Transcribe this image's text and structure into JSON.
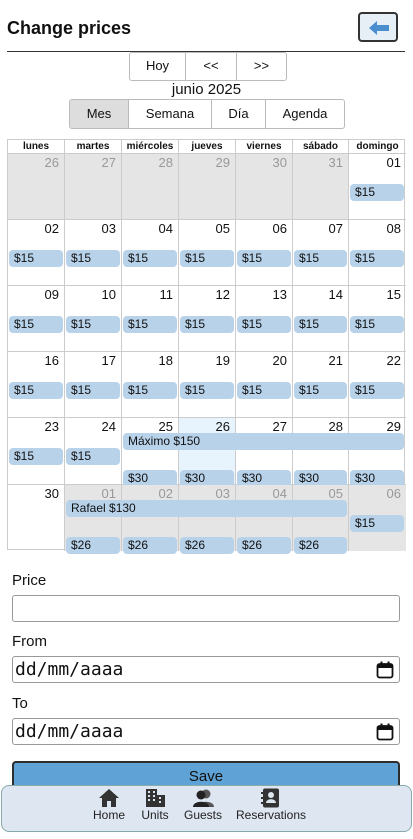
{
  "header": {
    "title": "Change prices"
  },
  "nav": {
    "today": "Hoy",
    "prev": "<<",
    "next": ">>"
  },
  "month_label": "junio 2025",
  "views": [
    "Mes",
    "Semana",
    "Día",
    "Agenda"
  ],
  "weekdays": [
    "lunes",
    "martes",
    "miércoles",
    "jueves",
    "viernes",
    "sábado",
    "domingo"
  ],
  "weeks": [
    [
      {
        "day": "26",
        "other": true
      },
      {
        "day": "27",
        "other": true
      },
      {
        "day": "28",
        "other": true
      },
      {
        "day": "29",
        "other": true
      },
      {
        "day": "30",
        "other": true
      },
      {
        "day": "31",
        "other": true
      },
      {
        "day": "01",
        "price": "$15"
      }
    ],
    [
      {
        "day": "02",
        "price": "$15"
      },
      {
        "day": "03",
        "price": "$15"
      },
      {
        "day": "04",
        "price": "$15"
      },
      {
        "day": "05",
        "price": "$15"
      },
      {
        "day": "06",
        "price": "$15"
      },
      {
        "day": "07",
        "price": "$15"
      },
      {
        "day": "08",
        "price": "$15"
      }
    ],
    [
      {
        "day": "09",
        "price": "$15"
      },
      {
        "day": "10",
        "price": "$15"
      },
      {
        "day": "11",
        "price": "$15"
      },
      {
        "day": "12",
        "price": "$15"
      },
      {
        "day": "13",
        "price": "$15"
      },
      {
        "day": "14",
        "price": "$15"
      },
      {
        "day": "15",
        "price": "$15"
      }
    ],
    [
      {
        "day": "16",
        "price": "$15"
      },
      {
        "day": "17",
        "price": "$15"
      },
      {
        "day": "18",
        "price": "$15"
      },
      {
        "day": "19",
        "price": "$15"
      },
      {
        "day": "20",
        "price": "$15"
      },
      {
        "day": "21",
        "price": "$15"
      },
      {
        "day": "22",
        "price": "$15"
      }
    ],
    [
      {
        "day": "23",
        "price": "$15"
      },
      {
        "day": "24",
        "price": "$15"
      },
      {
        "day": "25",
        "price": "$30"
      },
      {
        "day": "26",
        "price": "$30",
        "today": true
      },
      {
        "day": "27",
        "price": "$30"
      },
      {
        "day": "28",
        "price": "$30"
      },
      {
        "day": "29",
        "price": "$30"
      }
    ],
    [
      {
        "day": "30"
      },
      {
        "day": "01",
        "other": true,
        "price": "$26"
      },
      {
        "day": "02",
        "other": true,
        "price": "$26"
      },
      {
        "day": "03",
        "other": true,
        "price": "$26"
      },
      {
        "day": "04",
        "other": true,
        "price": "$26"
      },
      {
        "day": "05",
        "other": true,
        "price": "$26"
      },
      {
        "day": "06",
        "other": true,
        "price": "$15"
      }
    ]
  ],
  "spans": [
    {
      "week": 4,
      "start": 2,
      "end": 6,
      "label": "Máximo $150"
    },
    {
      "week": 5,
      "start": 1,
      "end": 5,
      "label": "Rafael $130"
    }
  ],
  "form": {
    "price_label": "Price",
    "price_value": "",
    "from_label": "From",
    "from_placeholder": "dd/mm/aaaa",
    "to_label": "To",
    "to_placeholder": "dd/mm/aaaa",
    "save_label": "Save"
  },
  "bottom_nav": [
    "Home",
    "Units",
    "Guests",
    "Reservations"
  ],
  "colors": {
    "event": "#b8d2ea",
    "save": "#5fa2d6",
    "bottom_bar": "#dde6f1",
    "other_month": "#e5e5e5",
    "today": "#e8f4fd"
  }
}
